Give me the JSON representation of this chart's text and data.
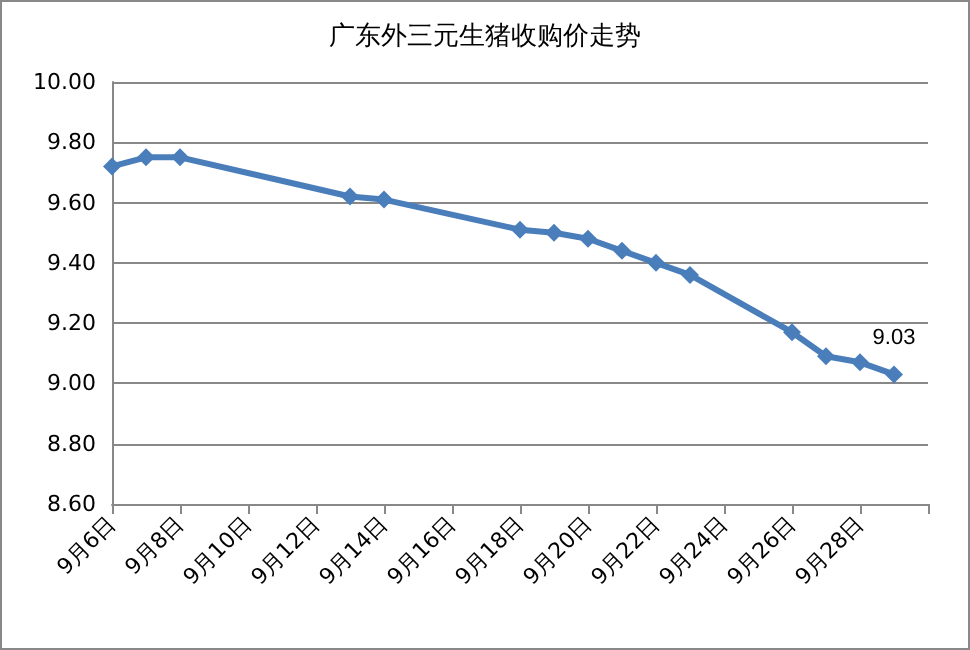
{
  "chart_data": {
    "type": "line",
    "title": "广东外三元生猪收购价走势",
    "x": [
      "--09-06",
      "--09-07",
      "--09-08",
      "--09-13",
      "--09-14",
      "--09-18",
      "--09-19",
      "--09-20",
      "--09-21",
      "--09-22",
      "--09-23",
      "--09-26",
      "--09-27",
      "--09-28",
      "--09-29"
    ],
    "series": [
      {
        "color": "#4a7ebb",
        "values": [
          9.72,
          9.75,
          9.75,
          9.62,
          9.61,
          9.51,
          9.5,
          9.48,
          9.44,
          9.4,
          9.36,
          9.17,
          9.09,
          9.07,
          9.03
        ],
        "value_labels": [
          null,
          null,
          null,
          null,
          null,
          null,
          null,
          null,
          null,
          null,
          null,
          null,
          null,
          null,
          "9.03"
        ]
      }
    ],
    "xlim": [
      "--09-06",
      "--09-30"
    ],
    "xticks": [
      {
        "value": "--09-06",
        "label": "9月6日"
      },
      {
        "value": "--09-08",
        "label": "9月8日"
      },
      {
        "value": "--09-10",
        "label": "9月10日"
      },
      {
        "value": "--09-12",
        "label": "9月12日"
      },
      {
        "value": "--09-14",
        "label": "9月14日"
      },
      {
        "value": "--09-16",
        "label": "9月16日"
      },
      {
        "value": "--09-18",
        "label": "9月18日"
      },
      {
        "value": "--09-20",
        "label": "9月20日"
      },
      {
        "value": "--09-22",
        "label": "9月22日"
      },
      {
        "value": "--09-24",
        "label": "9月24日"
      },
      {
        "value": "--09-26",
        "label": "9月26日"
      },
      {
        "value": "--09-28",
        "label": "9月28日"
      },
      {
        "value": "--09-30",
        "label": null
      }
    ],
    "ylim": [
      8.6,
      10.0
    ],
    "yticks": [
      {
        "value": 8.6,
        "label": "8.60"
      },
      {
        "value": 8.8,
        "label": "8.80"
      },
      {
        "value": 9.0,
        "label": "9.00"
      },
      {
        "value": 9.2,
        "label": "9.20"
      },
      {
        "value": 9.4,
        "label": "9.40"
      },
      {
        "value": 9.6,
        "label": "9.60"
      },
      {
        "value": 9.8,
        "label": "9.80"
      },
      {
        "value": 10.0,
        "label": "10.00"
      }
    ],
    "grid": "y",
    "marker": "diamond",
    "line_style": "solid"
  }
}
